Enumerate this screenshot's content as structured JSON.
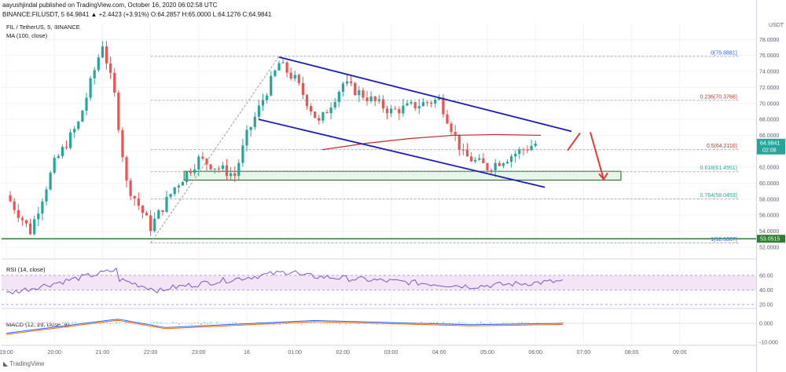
{
  "header": {
    "line1": "aayushjindal published on TradingView.com, October 16, 2020 06:02:58 UTC",
    "line2": "BINANCE:FILUSDT, 5  64.9841 ▲ +2.4423 (+3.91%) O:64.2857 H:65.0000 L:64.1276 C:64.9841",
    "pane_title": "FIL / TetherUS, 5, BINANCE",
    "ma_label": "MA (100, close)",
    "currency": "USDT"
  },
  "rsi": {
    "label": "RSI (14, close)",
    "levels": [
      60.0,
      40.0,
      20.0
    ]
  },
  "macd": {
    "label": "MACD (12, 26, close, 9)",
    "levels": [
      "0.000",
      "-10.000"
    ]
  },
  "price_tag": {
    "value": "64.9841",
    "countdown": "02:08"
  },
  "support_tag": "53.0515",
  "footer": {
    "brand": "TradingView"
  },
  "colors": {
    "up": "#26a69a",
    "down": "#ef5350",
    "channel": "#1c1cba",
    "ma": "#c62828",
    "fib": "#ef5350",
    "arrow": "#e53935",
    "zone": "#2e7d32"
  },
  "chart_data": {
    "type": "candlestick",
    "symbol": "FILUSDT",
    "x_ticks": [
      "19:00",
      "20:00",
      "21:00",
      "22:00",
      "23:00",
      "16",
      "01:00",
      "02:00",
      "03:00",
      "04:00",
      "05:00",
      "06:00",
      "07:00",
      "08:00",
      "09:00"
    ],
    "y_ticks": [
      52.0,
      54.0,
      56.0,
      58.0,
      60.0,
      62.0,
      64.0,
      66.0,
      68.0,
      70.0,
      72.0,
      74.0,
      76.0,
      78.0
    ],
    "ylim": [
      51.5,
      80.0
    ],
    "fib_levels": [
      {
        "label": "0(75.8881)",
        "value": 75.8881
      },
      {
        "label": "0.236(70.3766)",
        "value": 70.3766
      },
      {
        "label": "0.5(64.2110)",
        "value": 64.211
      },
      {
        "label": "0.618(61.4551)",
        "value": 61.4551
      },
      {
        "label": "0.764(58.0453)",
        "value": 58.0453
      },
      {
        "label": "1(52.5337)",
        "value": 52.5337
      }
    ],
    "close_path": [
      {
        "t": "19:00",
        "close": 58.5
      },
      {
        "t": "19:30",
        "close": 54.0
      },
      {
        "t": "20:00",
        "close": 62.5
      },
      {
        "t": "20:30",
        "close": 67.5
      },
      {
        "t": "21:00",
        "close": 77.5
      },
      {
        "t": "21:15",
        "close": 71.0
      },
      {
        "t": "21:30",
        "close": 60.0
      },
      {
        "t": "22:00",
        "close": 54.5
      },
      {
        "t": "22:30",
        "close": 59.5
      },
      {
        "t": "23:00",
        "close": 63.0
      },
      {
        "t": "23:45",
        "close": 61.0
      },
      {
        "t": "16",
        "close": 66.0
      },
      {
        "t": "00:40",
        "close": 75.0
      },
      {
        "t": "01:00",
        "close": 73.0
      },
      {
        "t": "01:30",
        "close": 67.5
      },
      {
        "t": "02:00",
        "close": 72.5
      },
      {
        "t": "03:00",
        "close": 69.0
      },
      {
        "t": "04:00",
        "close": 70.5
      },
      {
        "t": "04:30",
        "close": 63.5
      },
      {
        "t": "05:00",
        "close": 62.0
      },
      {
        "t": "06:00",
        "close": 64.98
      }
    ],
    "ma_values": [
      64.2,
      65.0,
      65.6,
      66.0,
      66.1,
      66.0
    ],
    "support_zone": [
      60.4,
      61.5
    ],
    "support_line": 53.0515,
    "channel": {
      "upper": [
        [
          75.8,
          "00:40"
        ],
        [
          66.5,
          "06:45"
        ]
      ],
      "lower": [
        [
          68.0,
          "00:15"
        ],
        [
          59.5,
          "06:00"
        ]
      ]
    },
    "arrow_targets": [
      66.3,
      60.5
    ]
  }
}
